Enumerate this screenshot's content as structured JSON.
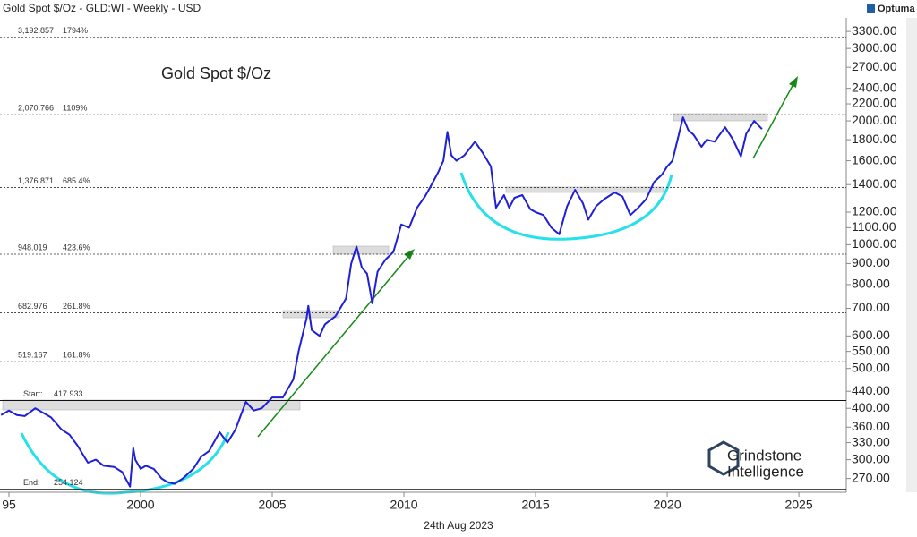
{
  "header": "Gold Spot $/Oz - GLD:WI - Weekly - USD",
  "brand": "Optuma",
  "footer": "24th Aug 2023",
  "watermark": [
    "Grindstone",
    "Intelligence"
  ],
  "chart_data": {
    "type": "line",
    "title": "Gold Spot $/Oz",
    "log_scale": true,
    "xlim": [
      1994.66,
      2026.8
    ],
    "ylim": [
      250,
      3420
    ],
    "xticks": [
      {
        "value": 1995,
        "label": "95"
      },
      2000,
      2005,
      2010,
      2015,
      2020,
      2025
    ],
    "yticks": [
      {
        "value": 270,
        "label": "270.00"
      },
      {
        "value": 300,
        "label": "300.00"
      },
      {
        "value": 330,
        "label": "330.00"
      },
      {
        "value": 360,
        "label": "360.00"
      },
      {
        "value": 400,
        "label": "400.00"
      },
      {
        "value": 440,
        "label": "440.00"
      },
      {
        "value": 500,
        "label": "500.00"
      },
      {
        "value": 550,
        "label": "550.00"
      },
      {
        "value": 600,
        "label": "600.00"
      },
      {
        "value": 700,
        "label": "700.00"
      },
      {
        "value": 800,
        "label": "800.00"
      },
      {
        "value": 900,
        "label": "900.00"
      },
      {
        "value": 1000,
        "label": "1000.00"
      },
      {
        "value": 1100,
        "label": "1100.00"
      },
      {
        "value": 1200,
        "label": "1200.00"
      },
      {
        "value": 1400,
        "label": "1400.00"
      },
      {
        "value": 1600,
        "label": "1600.00"
      },
      {
        "value": 1800,
        "label": "1800.00"
      },
      {
        "value": 2000,
        "label": "2000.00"
      },
      {
        "value": 2200,
        "label": "2200.00"
      },
      {
        "value": 2400,
        "label": "2400.00"
      },
      {
        "value": 2700,
        "label": "2700.00"
      },
      {
        "value": 3000,
        "label": "3000.00"
      },
      {
        "value": 3300,
        "label": "3300.00"
      }
    ],
    "levels": [
      {
        "value": 3192.857,
        "label": "3,192.857",
        "pct": "1794%"
      },
      {
        "value": 2070.766,
        "label": "2,070.766",
        "pct": "1109%"
      },
      {
        "value": 1376.871,
        "label": "1,376.871",
        "pct": "685.4%"
      },
      {
        "value": 948.019,
        "label": "948.019",
        "pct": "423.6%"
      },
      {
        "value": 682.976,
        "label": "682.976",
        "pct": "261.8%"
      },
      {
        "value": 519.167,
        "label": "519.167",
        "pct": "161.8%"
      }
    ],
    "start": {
      "label": "Start:",
      "value": 417.933
    },
    "end": {
      "label": "End:",
      "value": 254.124
    },
    "series": [
      {
        "color": "#1f1fd6",
        "x": [
          1994.7,
          1995.0,
          1995.3,
          1995.6,
          1996.0,
          1996.3,
          1996.6,
          1997.0,
          1997.3,
          1997.6,
          1998.0,
          1998.3,
          1998.6,
          1999.0,
          1999.3,
          1999.6,
          1999.72,
          1999.8,
          2000.0,
          2000.2,
          2000.5,
          2000.8,
          2001.0,
          2001.3,
          2001.6,
          2002.0,
          2002.3,
          2002.6,
          2003.0,
          2003.3,
          2003.6,
          2004.0,
          2004.3,
          2004.6,
          2005.0,
          2005.4,
          2005.8,
          2006.0,
          2006.3,
          2006.37,
          2006.5,
          2006.8,
          2007.0,
          2007.4,
          2007.8,
          2008.0,
          2008.2,
          2008.4,
          2008.6,
          2008.8,
          2009.0,
          2009.3,
          2009.6,
          2009.9,
          2010.2,
          2010.5,
          2010.8,
          2011.0,
          2011.3,
          2011.5,
          2011.65,
          2011.8,
          2012.0,
          2012.3,
          2012.7,
          2013.0,
          2013.3,
          2013.5,
          2013.8,
          2014.0,
          2014.2,
          2014.5,
          2014.8,
          2015.0,
          2015.3,
          2015.6,
          2015.9,
          2016.2,
          2016.5,
          2016.8,
          2017.0,
          2017.3,
          2017.6,
          2018.0,
          2018.3,
          2018.6,
          2018.9,
          2019.2,
          2019.5,
          2019.8,
          2020.0,
          2020.2,
          2020.6,
          2020.8,
          2021.0,
          2021.3,
          2021.5,
          2021.8,
          2022.2,
          2022.5,
          2022.8,
          2023.0,
          2023.3,
          2023.6
        ],
        "values": [
          385,
          395,
          385,
          383,
          400,
          390,
          380,
          355,
          345,
          325,
          295,
          300,
          290,
          288,
          280,
          258,
          320,
          300,
          285,
          290,
          285,
          270,
          265,
          262,
          270,
          285,
          305,
          315,
          350,
          330,
          355,
          415,
          395,
          400,
          425,
          425,
          470,
          550,
          660,
          710,
          620,
          600,
          640,
          670,
          740,
          900,
          990,
          880,
          850,
          720,
          860,
          920,
          960,
          1120,
          1100,
          1230,
          1310,
          1380,
          1500,
          1600,
          1880,
          1650,
          1600,
          1650,
          1780,
          1670,
          1550,
          1230,
          1320,
          1230,
          1300,
          1320,
          1220,
          1200,
          1180,
          1100,
          1060,
          1240,
          1360,
          1260,
          1150,
          1240,
          1290,
          1340,
          1310,
          1180,
          1230,
          1290,
          1420,
          1480,
          1550,
          1600,
          2040,
          1900,
          1850,
          1730,
          1800,
          1780,
          1930,
          1800,
          1640,
          1860,
          2000,
          1910
        ]
      }
    ]
  }
}
